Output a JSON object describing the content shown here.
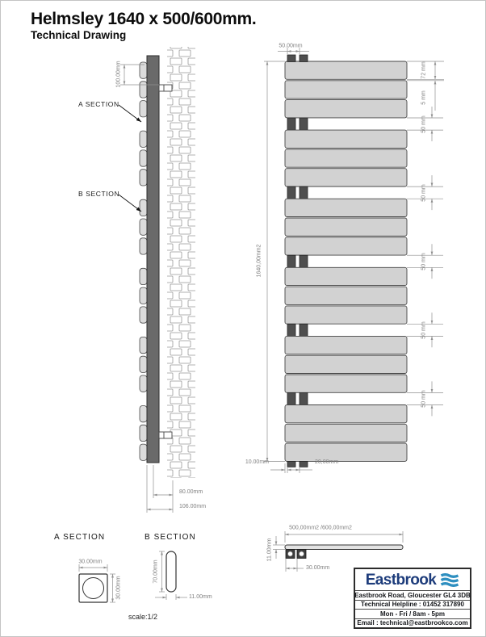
{
  "title": "Helmsley 1640 x 500/600mm.",
  "subtitle": "Technical Drawing",
  "side_view": {
    "a_section_label": "A SECTION",
    "b_section_label": "B SECTION",
    "dim_top_offset": "100.00mm",
    "dim_depth": "80.00mm",
    "dim_total_depth": "106.00mm"
  },
  "front_view": {
    "dim_pipe_spacing": "50.00mm",
    "dim_height": "1640,00mm2",
    "dim_panel_height": "72 mm",
    "dim_panel_gap": "5 mm",
    "dim_towel_gap": "50 mm",
    "dim_bottom_offset": "10.00mm",
    "dim_bottom_spacing": "20,00mm"
  },
  "sections": {
    "a_title": "A SECTION",
    "a_dim_width": "30.00mm",
    "a_dim_height": "30.00mm",
    "b_title": "B SECTION",
    "b_dim_height": "70.00mm",
    "b_dim_width": "11.00mm"
  },
  "top_view": {
    "dim_width": "500,00mm2 /600,00mm2",
    "dim_thickness": "11.00mm",
    "dim_spacing": "30.00mm"
  },
  "scale_note": "scale:1/2",
  "brand": {
    "name": "Eastbrook",
    "address": "Eastbrook Road, Gloucester GL4 3DB",
    "helpline": "Technical Helpline : 01452 317890",
    "hours": "Mon - Fri / 8am - 5pm",
    "email": "Email : technical@eastbrookco.com"
  },
  "colors": {
    "brand_navy": "#1d3c7b",
    "brand_blue": "#2e8fc0",
    "panel_gray": "#d2d2d2",
    "pipe_dark": "#4f4f4f",
    "dim_gray": "#808080"
  }
}
